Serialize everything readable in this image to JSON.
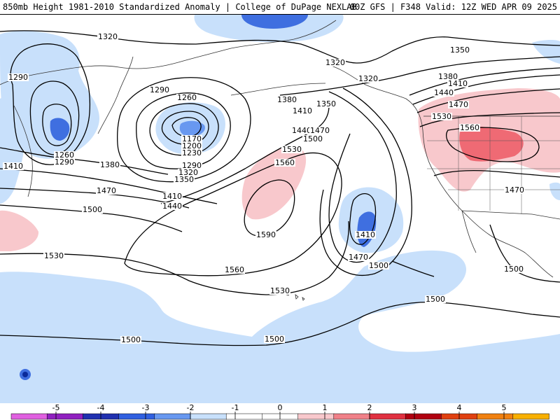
{
  "header": {
    "title": "850mb Height 1981-2010 Standardized Anomaly | College of DuPage NEXLAB",
    "run_info": "00Z GFS | F348 Valid: 12Z WED APR 09 2025"
  },
  "colors": {
    "contour": "#000000",
    "coast": "#333333",
    "neg_light": "#c8e0fb",
    "neg_mid": "#3f6fe0",
    "neg_dark": "#0a2a9a",
    "pos_light": "#f8c8cc",
    "pos_mid": "#ef6a74"
  },
  "contour_labels": [
    "1320",
    "1320",
    "1350",
    "1290",
    "1290",
    "1260",
    "1320",
    "1380",
    "1410",
    "1350",
    "1380",
    "1410",
    "1440",
    "1470",
    "1530",
    "1560",
    "1260",
    "1290",
    "1410",
    "1380",
    "1170",
    "1200",
    "1230",
    "1290",
    "1320",
    "1350",
    "1440",
    "1470",
    "1500",
    "1530",
    "1560",
    "1470",
    "1410",
    "1440",
    "1500",
    "1590",
    "1410",
    "1470",
    "1500",
    "1560",
    "1530",
    "1530",
    "1500",
    "1500",
    "1500",
    "1500",
    "1470"
  ],
  "colorbar": {
    "ticks": [
      "-5",
      "-4",
      "-3",
      "-2",
      "-1",
      "0",
      "1",
      "2",
      "3",
      "4",
      "5"
    ],
    "bins": [
      {
        "color": "#e060e0"
      },
      {
        "color": "#9020c0"
      },
      {
        "color": "#2030b0"
      },
      {
        "color": "#3060e0"
      },
      {
        "color": "#6898f0"
      },
      {
        "color": "#c8e0fb"
      },
      {
        "color": "#ffffff"
      },
      {
        "color": "#ffffff"
      },
      {
        "color": "#f8c8cc"
      },
      {
        "color": "#f08088"
      },
      {
        "color": "#e03040"
      },
      {
        "color": "#b00010"
      },
      {
        "color": "#e04010"
      },
      {
        "color": "#f08010"
      },
      {
        "color": "#f8b000"
      }
    ]
  }
}
